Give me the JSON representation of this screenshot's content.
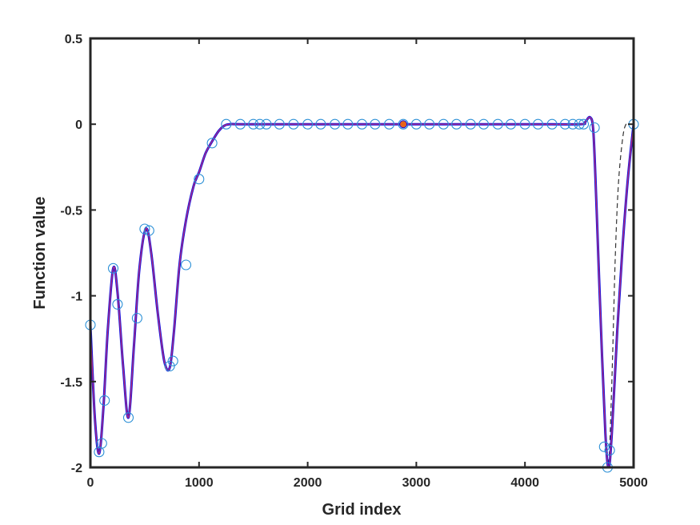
{
  "chart_data": {
    "type": "line",
    "title": "",
    "xlabel": "Grid index",
    "ylabel": "Function value",
    "xlim": [
      0,
      5000
    ],
    "ylim": [
      -2,
      0.5
    ],
    "xticks": [
      0,
      1000,
      2000,
      3000,
      4000,
      5000
    ],
    "xtick_labels": [
      "0",
      "1000",
      "2000",
      "3000",
      "4000",
      "5000"
    ],
    "yticks": [
      -2,
      -1.5,
      -1,
      -0.5,
      0,
      0.5
    ],
    "ytick_labels": [
      "-2",
      "-1.5",
      "-1",
      "-0.5",
      "0",
      "0.5"
    ],
    "grid": false,
    "legend": "none",
    "colors": {
      "main_line": "#1010e0",
      "overlay_line": "#c0307a",
      "dashed_line": "#333333",
      "markers": "#2a8fd6",
      "highlight_fill": "#e8631a",
      "axes": "#262626"
    },
    "series": [
      {
        "style": "solid-blue",
        "x": [
          0,
          40,
          80,
          120,
          160,
          210,
          250,
          300,
          350,
          400,
          450,
          510,
          560,
          620,
          680,
          730,
          770,
          820,
          880,
          950,
          1000,
          1060,
          1120,
          1180,
          1230,
          1280,
          1400,
          2000,
          3000,
          4000,
          4500,
          4550,
          4600,
          4630,
          4660,
          4700,
          4740,
          4770,
          4800,
          4850,
          4900,
          4950,
          5000
        ],
        "y": [
          -1.17,
          -1.7,
          -1.92,
          -1.65,
          -1.2,
          -0.84,
          -0.98,
          -1.4,
          -1.71,
          -1.3,
          -0.85,
          -0.61,
          -0.75,
          -1.1,
          -1.38,
          -1.42,
          -1.2,
          -0.82,
          -0.56,
          -0.36,
          -0.28,
          -0.17,
          -0.1,
          -0.04,
          -0.01,
          0,
          0,
          0,
          0,
          0,
          0,
          0.01,
          0.04,
          -0.05,
          -0.5,
          -1.2,
          -1.8,
          -2.0,
          -1.8,
          -1.2,
          -0.7,
          -0.3,
          0
        ]
      },
      {
        "style": "dashed-black",
        "x": [
          4600,
          4630,
          4660,
          4700,
          4740,
          4770,
          4800,
          4830,
          4860,
          4900,
          4930,
          4960,
          5000
        ],
        "y": [
          0.04,
          -0.05,
          -0.5,
          -1.2,
          -1.8,
          -1.98,
          -1.5,
          -0.8,
          -0.35,
          -0.08,
          0,
          0,
          0
        ]
      },
      {
        "style": "circle-markers",
        "x": [
          0,
          80,
          105,
          130,
          210,
          250,
          350,
          430,
          500,
          540,
          730,
          760,
          880,
          1000,
          1120,
          1250,
          1380,
          1500,
          1560,
          1620,
          1740,
          1870,
          2000,
          2120,
          2250,
          2370,
          2500,
          2620,
          2750,
          2880,
          3000,
          3120,
          3250,
          3370,
          3500,
          3620,
          3750,
          3870,
          4000,
          4120,
          4250,
          4370,
          4440,
          4500,
          4540,
          4640,
          4730,
          4760,
          4780,
          5000
        ],
        "y": [
          -1.17,
          -1.91,
          -1.86,
          -1.61,
          -0.84,
          -1.05,
          -1.71,
          -1.13,
          -0.61,
          -0.62,
          -1.41,
          -1.38,
          -0.82,
          -0.32,
          -0.11,
          0,
          0,
          0,
          0,
          0,
          0,
          0,
          0,
          0,
          0,
          0,
          0,
          0,
          0,
          0,
          0,
          0,
          0,
          0,
          0,
          0,
          0,
          0,
          0,
          0,
          0,
          0,
          0,
          0,
          0,
          -0.02,
          -1.88,
          -2.0,
          -1.9,
          0
        ]
      },
      {
        "style": "highlight-point",
        "x": [
          2880
        ],
        "y": [
          0
        ]
      }
    ]
  }
}
